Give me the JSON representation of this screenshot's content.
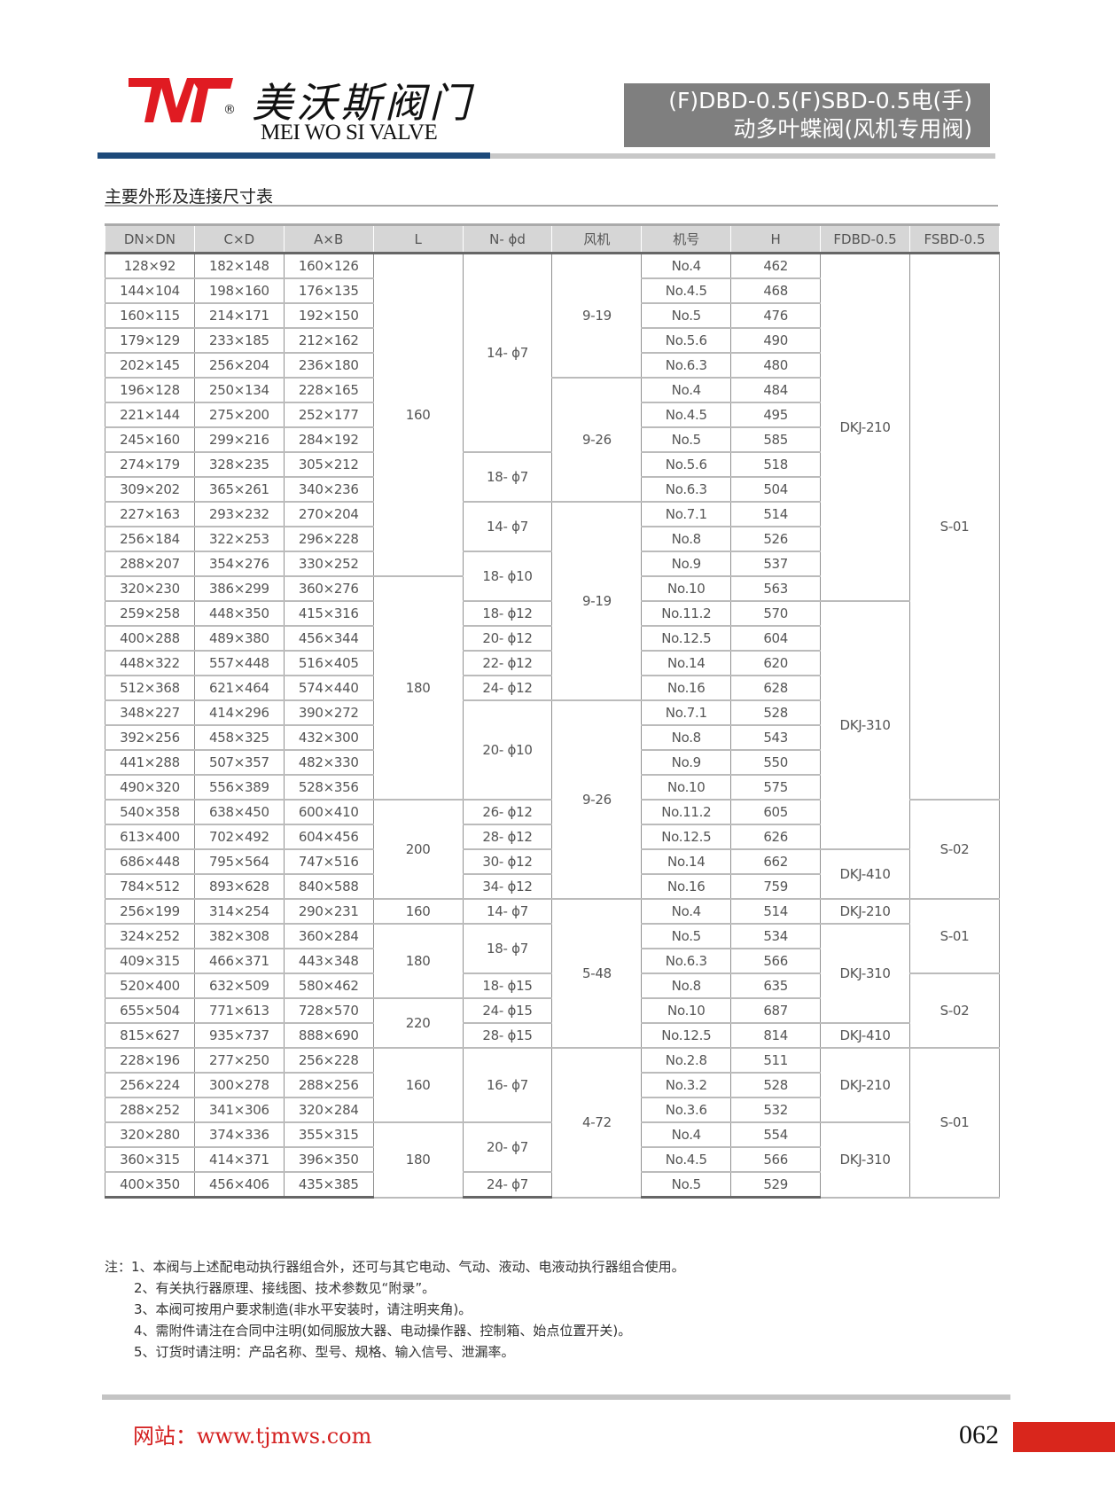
{
  "brand": {
    "name_cn": "美沃斯阀门",
    "name_en": "MEI WO SI VALVE",
    "registered": "®",
    "logo_color": "#e01b22"
  },
  "title": {
    "line1": "(F)DBD-0.5(F)SBD-0.5电(手)",
    "line2": "动多叶蝶阀(风机专用阀)"
  },
  "section_title": "主要外形及连接尺寸表",
  "table": {
    "headers": [
      "DN×DN",
      "C×D",
      "A×B",
      "L",
      "N- ϕd",
      "风机",
      "机号",
      "H",
      "FDBD-0.5",
      "FSBD-0.5"
    ],
    "dn": [
      "128×92",
      "144×104",
      "160×115",
      "179×129",
      "202×145",
      "196×128",
      "221×144",
      "245×160",
      "274×179",
      "309×202",
      "227×163",
      "256×184",
      "288×207",
      "320×230",
      "259×258",
      "400×288",
      "448×322",
      "512×368",
      "348×227",
      "392×256",
      "441×288",
      "490×320",
      "540×358",
      "613×400",
      "686×448",
      "784×512",
      "256×199",
      "324×252",
      "409×315",
      "520×400",
      "655×504",
      "815×627",
      "228×196",
      "256×224",
      "288×252",
      "320×280",
      "360×315",
      "400×350"
    ],
    "cd": [
      "182×148",
      "198×160",
      "214×171",
      "233×185",
      "256×204",
      "250×134",
      "275×200",
      "299×216",
      "328×235",
      "365×261",
      "293×232",
      "322×253",
      "354×276",
      "386×299",
      "448×350",
      "489×380",
      "557×448",
      "621×464",
      "414×296",
      "458×325",
      "507×357",
      "556×389",
      "638×450",
      "702×492",
      "795×564",
      "893×628",
      "314×254",
      "382×308",
      "466×371",
      "632×509",
      "771×613",
      "935×737",
      "277×250",
      "300×278",
      "341×306",
      "374×336",
      "414×371",
      "456×406"
    ],
    "ab": [
      "160×126",
      "176×135",
      "192×150",
      "212×162",
      "236×180",
      "228×165",
      "252×177",
      "284×192",
      "305×212",
      "340×236",
      "270×204",
      "296×228",
      "330×252",
      "360×276",
      "415×316",
      "456×344",
      "516×405",
      "574×440",
      "390×272",
      "432×300",
      "482×330",
      "528×356",
      "600×410",
      "604×456",
      "747×516",
      "840×588",
      "290×231",
      "360×284",
      "443×348",
      "580×462",
      "728×570",
      "888×690",
      "256×228",
      "288×256",
      "320×284",
      "355×315",
      "396×350",
      "435×385"
    ],
    "L": [
      {
        "v": "160",
        "n": 13
      },
      {
        "v": "180",
        "n": 9
      },
      {
        "v": "200",
        "n": 4
      },
      {
        "v": "160",
        "n": 1
      },
      {
        "v": "180",
        "n": 3
      },
      {
        "v": "220",
        "n": 2
      },
      {
        "v": "160",
        "n": 3
      },
      {
        "v": "180",
        "n": 3
      }
    ],
    "nphi": [
      {
        "v": "14- ϕ7",
        "n": 8
      },
      {
        "v": "18- ϕ7",
        "n": 2
      },
      {
        "v": "14- ϕ7",
        "n": 2
      },
      {
        "v": "18- ϕ10",
        "n": 2
      },
      {
        "v": "18- ϕ12",
        "n": 1
      },
      {
        "v": "20- ϕ12",
        "n": 1
      },
      {
        "v": "22- ϕ12",
        "n": 1
      },
      {
        "v": "24- ϕ12",
        "n": 1
      },
      {
        "v": "20- ϕ10",
        "n": 4
      },
      {
        "v": "26- ϕ12",
        "n": 1
      },
      {
        "v": "28- ϕ12",
        "n": 1
      },
      {
        "v": "30- ϕ12",
        "n": 1
      },
      {
        "v": "34- ϕ12",
        "n": 1
      },
      {
        "v": "14- ϕ7",
        "n": 1
      },
      {
        "v": "18- ϕ7",
        "n": 2
      },
      {
        "v": "18- ϕ15",
        "n": 1
      },
      {
        "v": "24- ϕ15",
        "n": 1
      },
      {
        "v": "28- ϕ15",
        "n": 1
      },
      {
        "v": "16- ϕ7",
        "n": 3
      },
      {
        "v": "20- ϕ7",
        "n": 2
      },
      {
        "v": "24- ϕ7",
        "n": 1
      }
    ],
    "fan": [
      {
        "v": "9-19",
        "n": 5
      },
      {
        "v": "9-26",
        "n": 5
      },
      {
        "v": "9-19",
        "n": 8
      },
      {
        "v": "9-26",
        "n": 8
      },
      {
        "v": "5-48",
        "n": 6
      },
      {
        "v": "4-72",
        "n": 6
      }
    ],
    "model": [
      "No.4",
      "No.4.5",
      "No.5",
      "No.5.6",
      "No.6.3",
      "No.4",
      "No.4.5",
      "No.5",
      "No.5.6",
      "No.6.3",
      "No.7.1",
      "No.8",
      "No.9",
      "No.10",
      "No.11.2",
      "No.12.5",
      "No.14",
      "No.16",
      "No.7.1",
      "No.8",
      "No.9",
      "No.10",
      "No.11.2",
      "No.12.5",
      "No.14",
      "No.16",
      "No.4",
      "No.5",
      "No.6.3",
      "No.8",
      "No.10",
      "No.12.5",
      "No.2.8",
      "No.3.2",
      "No.3.6",
      "No.4",
      "No.4.5",
      "No.5"
    ],
    "H": [
      "462",
      "468",
      "476",
      "490",
      "480",
      "484",
      "495",
      "585",
      "518",
      "504",
      "514",
      "526",
      "537",
      "563",
      "570",
      "604",
      "620",
      "628",
      "528",
      "543",
      "550",
      "575",
      "605",
      "626",
      "662",
      "759",
      "514",
      "534",
      "566",
      "635",
      "687",
      "814",
      "511",
      "528",
      "532",
      "554",
      "566",
      "529"
    ],
    "fdbd": [
      {
        "v": "DKJ-210",
        "n": 14
      },
      {
        "v": "DKJ-310",
        "n": 10
      },
      {
        "v": "DKJ-410",
        "n": 2
      },
      {
        "v": "DKJ-210",
        "n": 1
      },
      {
        "v": "DKJ-310",
        "n": 4
      },
      {
        "v": "DKJ-410",
        "n": 1
      },
      {
        "v": "DKJ-210",
        "n": 3
      },
      {
        "v": "DKJ-310",
        "n": 3
      }
    ],
    "fsbd": [
      {
        "v": "S-01",
        "n": 22
      },
      {
        "v": "S-02",
        "n": 4
      },
      {
        "v": "S-01",
        "n": 3
      },
      {
        "v": "S-02",
        "n": 3
      },
      {
        "v": "S-01",
        "n": 6
      }
    ]
  },
  "notes": {
    "prefix": "注：",
    "items": [
      "1、本阀与上述配电动执行器组合外，还可与其它电动、气动、液动、电液动执行器组合使用。",
      "2、有关执行器原理、接线图、技术参数见“附录”。",
      "3、本阀可按用户要求制造(非水平安装时，请注明夹角)。",
      "4、需附件请注在合同中注明(如伺服放大器、电动操作器、控制箱、始点位置开关)。",
      "5、订货时请注明：产品名称、型号、规格、输入信号、泄漏率。"
    ]
  },
  "footer": {
    "website": "网站：www.tjmws.com",
    "page_number": "062",
    "accent": "#d9261c"
  }
}
